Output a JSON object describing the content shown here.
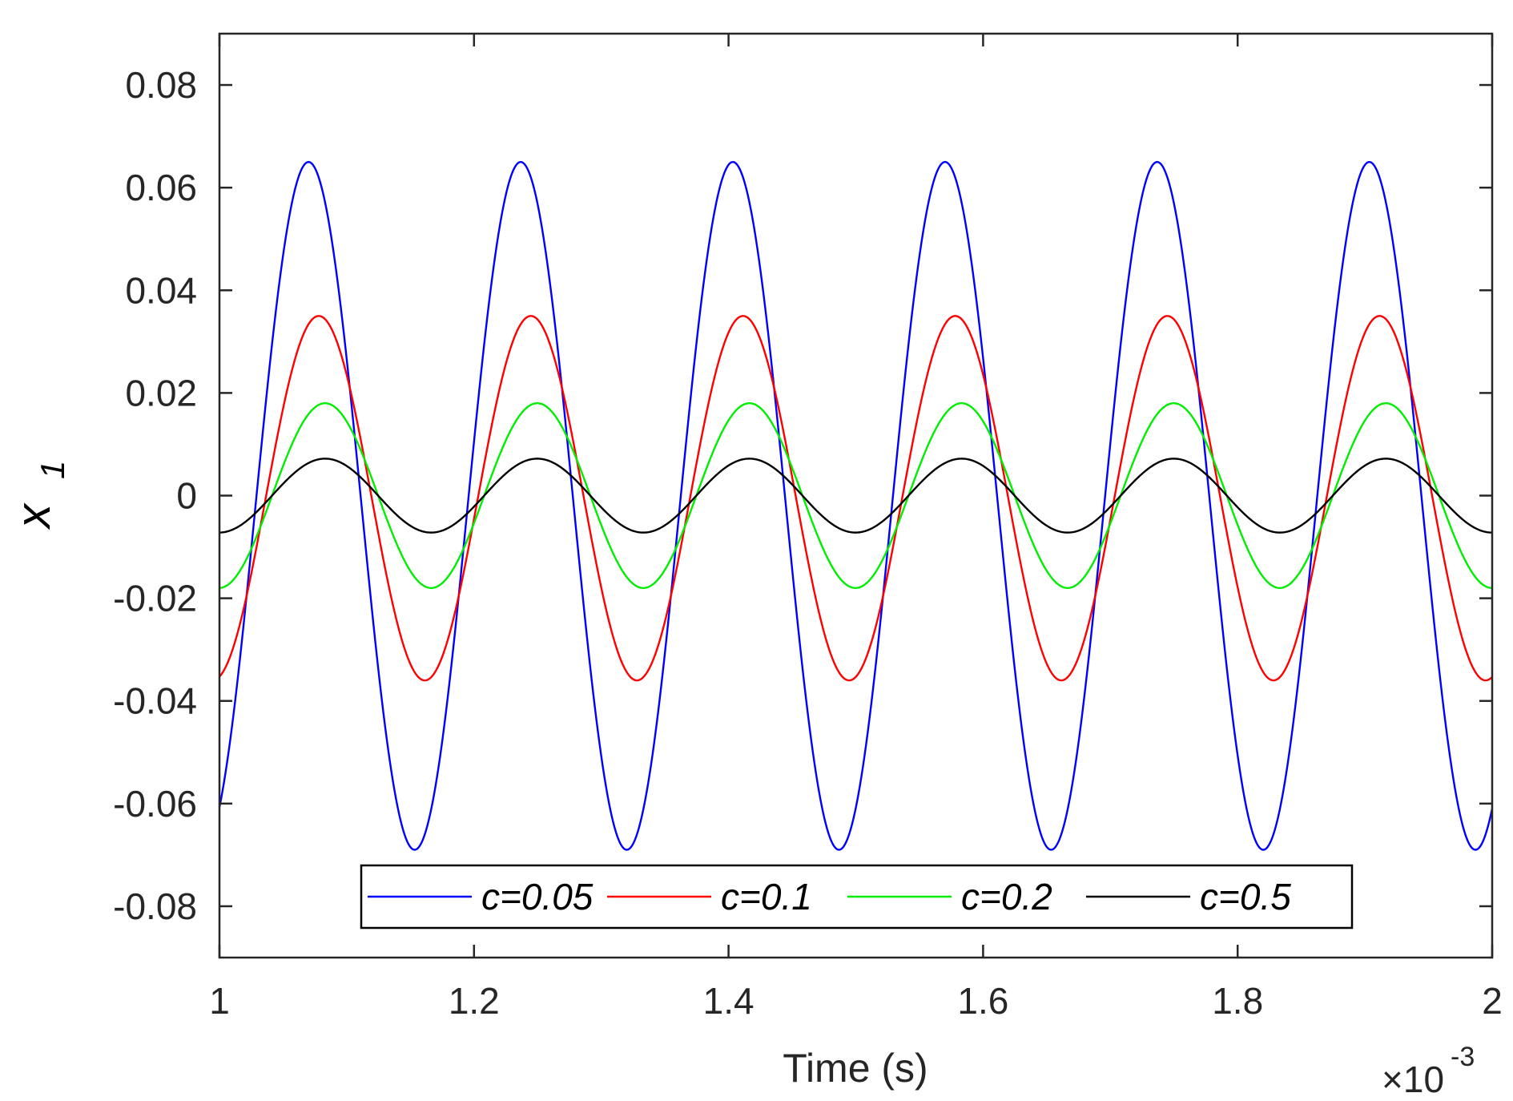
{
  "chart_data": {
    "type": "line",
    "title": "",
    "xlabel": "Time (s)",
    "ylabel": "x",
    "ylabel_subscript": "1",
    "x_scale_label": "×10",
    "x_scale_exponent": "-3",
    "xlim": [
      1,
      2
    ],
    "ylim": [
      -0.09,
      0.09
    ],
    "x_ticks": [
      1,
      1.2,
      1.4,
      1.6,
      1.8,
      2
    ],
    "x_tick_labels": [
      "1",
      "1.2",
      "1.4",
      "1.6",
      "1.8",
      "2"
    ],
    "y_ticks": [
      -0.08,
      -0.06,
      -0.04,
      -0.02,
      0,
      0.02,
      0.04,
      0.06,
      0.08
    ],
    "y_tick_labels": [
      "-0.08",
      "-0.06",
      "-0.04",
      "-0.02",
      "0",
      "0.02",
      "0.04",
      "0.06",
      "0.08"
    ],
    "grid": false,
    "legend_position": "bottom-center",
    "period": 0.1667,
    "series": [
      {
        "name": "c=0.05",
        "color": "#0000ff",
        "peak_x": 1.07,
        "offset": -0.002,
        "amplitude": 0.067
      },
      {
        "name": "c=0.1",
        "color": "#ff0000",
        "peak_x": 1.078,
        "offset": -0.0005,
        "amplitude": 0.0355
      },
      {
        "name": "c=0.2",
        "color": "#00ee00",
        "peak_x": 1.083,
        "offset": 0.0,
        "amplitude": 0.018
      },
      {
        "name": "c=0.5",
        "color": "#000000",
        "peak_x": 1.083,
        "offset": 0.0,
        "amplitude": 0.0072
      }
    ]
  }
}
